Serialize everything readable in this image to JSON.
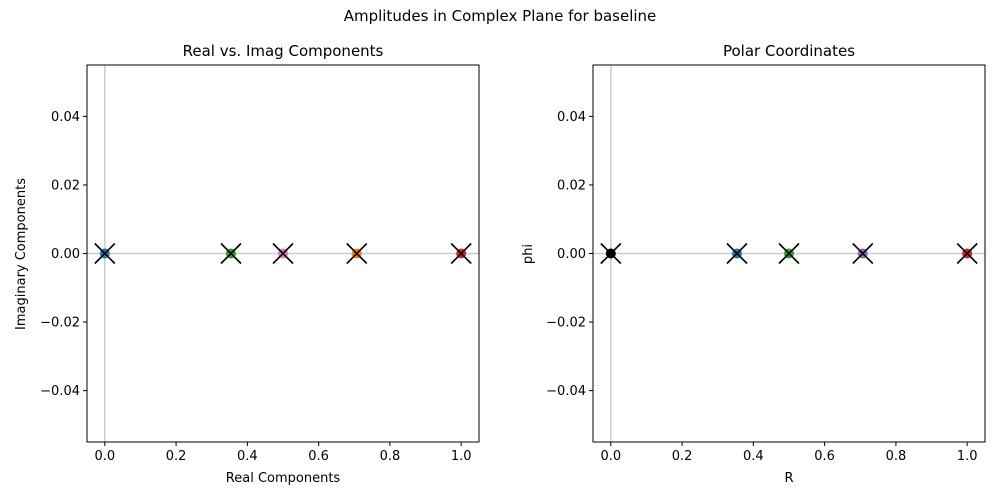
{
  "figure": {
    "suptitle": "Amplitudes in Complex Plane for baseline"
  },
  "chart_data": [
    {
      "type": "scatter",
      "title": "Real vs. Imag Components",
      "xlabel": "Real Components",
      "ylabel": "Imaginary Components",
      "xlim": [
        -0.05,
        1.05
      ],
      "ylim": [
        -0.055,
        0.055
      ],
      "xticks": [
        0.0,
        0.2,
        0.4,
        0.6,
        0.8,
        1.0
      ],
      "xtick_labels": [
        "0.0",
        "0.2",
        "0.4",
        "0.6",
        "0.8",
        "1.0"
      ],
      "yticks": [
        -0.04,
        -0.02,
        0.0,
        0.02,
        0.04
      ],
      "ytick_labels": [
        "−0.04",
        "−0.02",
        "0.00",
        "0.02",
        "0.04"
      ],
      "reference_lines": {
        "x": 0,
        "y": 0,
        "color": "#cccccc"
      },
      "marker_cross_color": "#000000",
      "points": [
        {
          "x": 0.0,
          "y": 0.0,
          "color": "#1f77b4"
        },
        {
          "x": 0.354,
          "y": 0.0,
          "color": "#2ca02c"
        },
        {
          "x": 0.5,
          "y": 0.0,
          "color": "#e377c2"
        },
        {
          "x": 0.707,
          "y": 0.0,
          "color": "#ff7f0e"
        },
        {
          "x": 1.0,
          "y": 0.0,
          "color": "#d62728"
        }
      ]
    },
    {
      "type": "scatter",
      "title": "Polar Coordinates",
      "xlabel": "R",
      "ylabel": "phi",
      "xlim": [
        -0.05,
        1.05
      ],
      "ylim": [
        -0.055,
        0.055
      ],
      "xticks": [
        0.0,
        0.2,
        0.4,
        0.6,
        0.8,
        1.0
      ],
      "xtick_labels": [
        "0.0",
        "0.2",
        "0.4",
        "0.6",
        "0.8",
        "1.0"
      ],
      "yticks": [
        -0.04,
        -0.02,
        0.0,
        0.02,
        0.04
      ],
      "ytick_labels": [
        "−0.04",
        "−0.02",
        "0.00",
        "0.02",
        "0.04"
      ],
      "reference_lines": {
        "x": 0,
        "y": 0,
        "color": "#cccccc"
      },
      "marker_cross_color": "#000000",
      "points": [
        {
          "x": 0.0,
          "y": 0.0,
          "color": "#000000"
        },
        {
          "x": 0.354,
          "y": 0.0,
          "color": "#1f77b4"
        },
        {
          "x": 0.5,
          "y": 0.0,
          "color": "#2ca02c"
        },
        {
          "x": 0.707,
          "y": 0.0,
          "color": "#9467bd"
        },
        {
          "x": 1.0,
          "y": 0.0,
          "color": "#d62728"
        }
      ]
    }
  ]
}
